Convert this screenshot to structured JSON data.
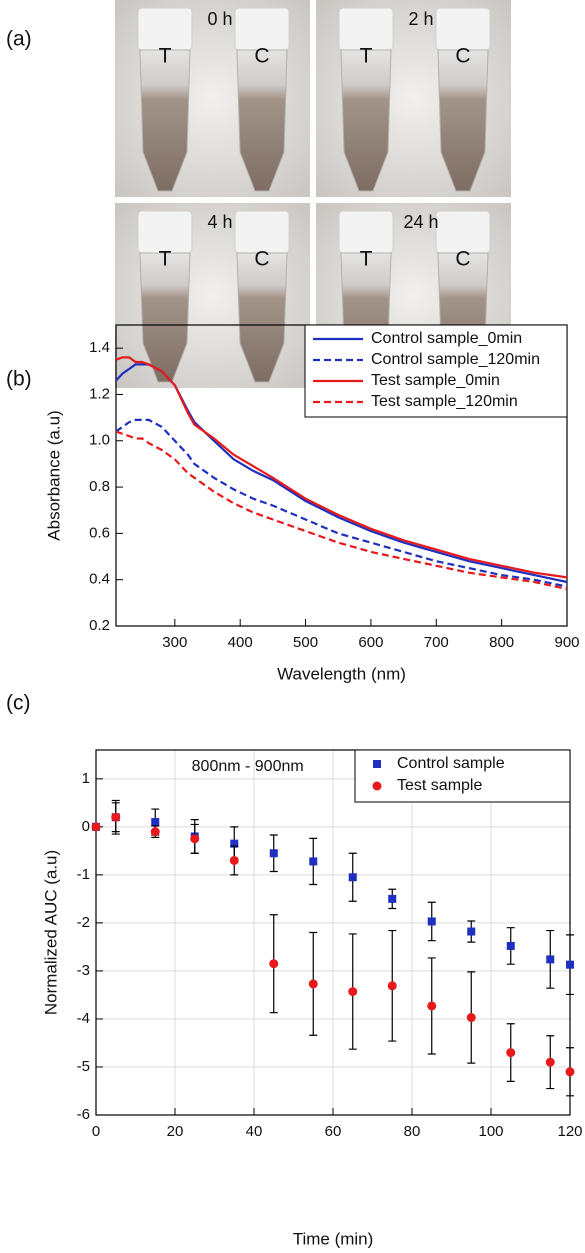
{
  "panel_labels": [
    "(a)",
    "(b)",
    "(c)"
  ],
  "photos": [
    {
      "time": "0 h",
      "tubes": [
        "T",
        "C"
      ]
    },
    {
      "time": "2 h",
      "tubes": [
        "T",
        "C"
      ]
    },
    {
      "time": "4 h",
      "tubes": [
        "T",
        "C"
      ]
    },
    {
      "time": "24 h",
      "tubes": [
        "T",
        "C"
      ]
    }
  ],
  "chart_data": [
    {
      "type": "line",
      "x_label": "Wavelength (nm)",
      "y_label": "Absorbance (a.u)",
      "x": [
        210,
        220,
        230,
        240,
        250,
        260,
        280,
        300,
        320,
        330,
        360,
        390,
        420,
        450,
        500,
        550,
        600,
        650,
        700,
        750,
        800,
        850,
        900
      ],
      "series": [
        {
          "name": "Control sample_0min",
          "color": "#1f2fbf",
          "line_style": "solid",
          "values": [
            1.26,
            1.29,
            1.31,
            1.33,
            1.33,
            1.33,
            1.3,
            1.24,
            1.13,
            1.08,
            1.0,
            0.92,
            0.87,
            0.83,
            0.74,
            0.67,
            0.61,
            0.56,
            0.52,
            0.48,
            0.45,
            0.42,
            0.39
          ]
        },
        {
          "name": "Control sample_120min",
          "color": "#1f2fbf",
          "line_style": "dashed",
          "values": [
            1.04,
            1.06,
            1.08,
            1.09,
            1.09,
            1.09,
            1.06,
            1.0,
            0.94,
            0.9,
            0.84,
            0.79,
            0.75,
            0.72,
            0.66,
            0.6,
            0.56,
            0.52,
            0.48,
            0.45,
            0.42,
            0.4,
            0.37
          ]
        },
        {
          "name": "Test sample_0min",
          "color": "#e8191b",
          "line_style": "solid",
          "values": [
            1.35,
            1.36,
            1.36,
            1.34,
            1.34,
            1.33,
            1.3,
            1.24,
            1.12,
            1.07,
            1.01,
            0.94,
            0.89,
            0.84,
            0.75,
            0.68,
            0.62,
            0.57,
            0.53,
            0.49,
            0.46,
            0.43,
            0.41
          ]
        },
        {
          "name": "Test sample_120min",
          "color": "#e8191b",
          "line_style": "dashed",
          "values": [
            1.04,
            1.03,
            1.02,
            1.01,
            1.01,
            0.99,
            0.96,
            0.92,
            0.86,
            0.84,
            0.78,
            0.73,
            0.69,
            0.66,
            0.61,
            0.56,
            0.52,
            0.49,
            0.46,
            0.43,
            0.41,
            0.39,
            0.36
          ]
        }
      ],
      "xlim": [
        210,
        900
      ],
      "xticks": [
        300,
        400,
        500,
        600,
        700,
        800,
        900
      ],
      "ylim": [
        0.2,
        1.5
      ],
      "yticks": [
        0.2,
        0.4,
        0.6,
        0.8,
        {
          "value": 1,
          "label": "1.0"
        },
        1.2,
        1.4
      ],
      "grid": false,
      "legend": "upper right"
    },
    {
      "type": "scatter",
      "annotation": "800nm - 900nm",
      "x_label": "Time (min)",
      "y_label": "Normalized AUC (a.u)",
      "x": [
        0,
        5,
        15,
        25,
        35,
        45,
        55,
        65,
        75,
        85,
        95,
        105,
        115,
        120
      ],
      "series": [
        {
          "name": "Control sample",
          "color": "#1f2fbf",
          "marker": "square",
          "values": [
            0,
            0.2,
            0.1,
            -0.2,
            -0.35,
            -0.55,
            -0.72,
            -1.05,
            -1.5,
            -1.97,
            -2.18,
            -2.48,
            -2.76,
            -2.87
          ],
          "errors": [
            0,
            0.35,
            0.27,
            0.35,
            0.35,
            0.38,
            0.48,
            0.5,
            0.2,
            0.4,
            0.22,
            0.38,
            0.6,
            0.62
          ]
        },
        {
          "name": "Test sample",
          "color": "#e8191b",
          "marker": "circle",
          "values": [
            0,
            0.2,
            -0.1,
            -0.25,
            -0.7,
            -2.85,
            -3.27,
            -3.43,
            -3.31,
            -3.73,
            -3.97,
            -4.7,
            -4.9,
            -5.1
          ],
          "errors": [
            0,
            0.3,
            0.12,
            0.3,
            0.3,
            1.02,
            1.07,
            1.2,
            1.15,
            1.0,
            0.95,
            0.6,
            0.55,
            0.5
          ]
        }
      ],
      "xlim": [
        0,
        120
      ],
      "xticks": [
        0,
        20,
        40,
        60,
        80,
        100,
        120
      ],
      "ylim": [
        -6,
        1.6
      ],
      "yticks": [
        -6,
        -5,
        -4,
        -3,
        -2,
        -1,
        0,
        1
      ],
      "grid": true,
      "legend": "upper right"
    }
  ]
}
